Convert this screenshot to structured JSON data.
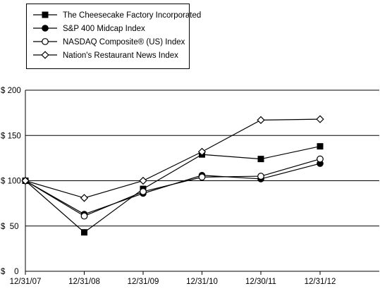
{
  "chart_data": {
    "type": "line",
    "categories": [
      "12/31/07",
      "12/31/08",
      "12/31/09",
      "12/31/10",
      "12/30/11",
      "12/31/12"
    ],
    "ylim": [
      0,
      200
    ],
    "yticks": [
      0,
      50,
      100,
      150,
      200
    ],
    "ytick_labels": [
      "$    0",
      "$  50",
      "$ 100",
      "$ 150",
      "$ 200"
    ],
    "grid": "horizontal",
    "legend_position": "top-left",
    "series": [
      {
        "name": "The Cheesecake Factory Incorporated",
        "marker": "filled-square",
        "values": [
          100,
          43,
          91,
          129,
          124,
          138
        ]
      },
      {
        "name": "S&P 400 Midcap Index",
        "marker": "filled-circle",
        "values": [
          100,
          63,
          86,
          106,
          102,
          119
        ]
      },
      {
        "name": "NASDAQ Composite® (US) Index",
        "marker": "open-circle",
        "values": [
          100,
          61,
          88,
          104,
          105,
          124
        ]
      },
      {
        "name": "Nation's Restaurant News Index",
        "marker": "open-diamond",
        "values": [
          100,
          81,
          100,
          132,
          167,
          168
        ]
      }
    ],
    "colors": {
      "line": "#000000",
      "grid": "#000000",
      "background": "#ffffff"
    }
  }
}
